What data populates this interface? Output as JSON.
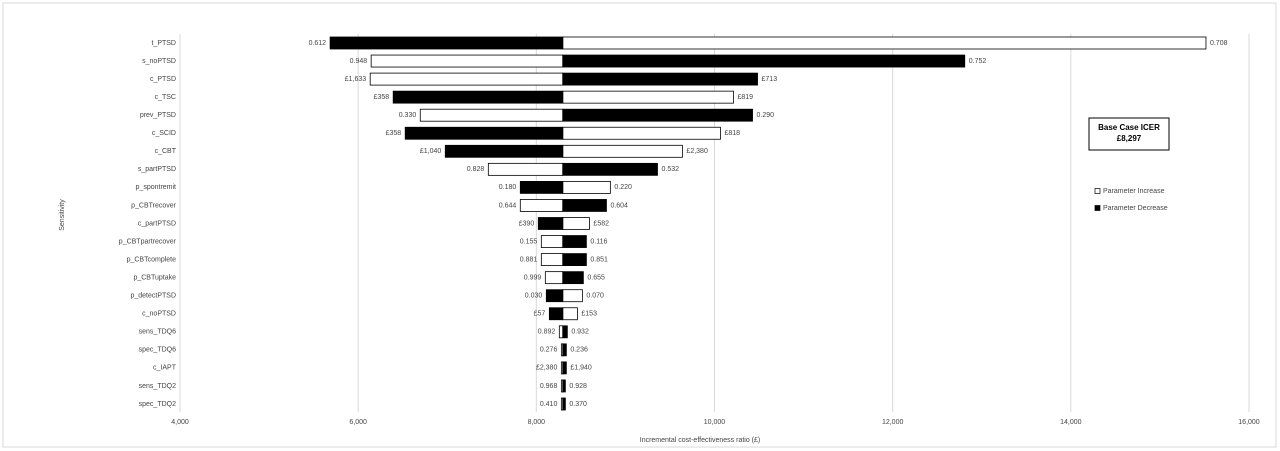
{
  "chart_data": {
    "type": "tornado",
    "x_label": "Incremental cost-effectiveness ratio (£)",
    "y_label": "Sensitivity",
    "categories": [
      "t_PTSD",
      "s_noPTSD",
      "c_PTSD",
      "c_TSC",
      "prev_PTSD",
      "c_SCID",
      "c_CBT",
      "s_partPTSD",
      "p_spontremit",
      "p_CBTrecover",
      "c_partPTSD",
      "p_CBTpartrecover",
      "p_CBTcomplete",
      "p_CBTuptake",
      "p_detectPTSD",
      "c_noPTSD",
      "sens_TDQ6",
      "spec_TDQ6",
      "c_IAPT",
      "sens_TDQ2",
      "spec_TDQ2"
    ],
    "series": [
      {
        "name": "Parameter Increase",
        "color": "#ffffff",
        "values": [
          15517,
          6146,
          6135,
          10213,
          6697,
          10067,
          9640,
          7461,
          8831,
          7820,
          8596,
          8056,
          8056,
          8101,
          8517,
          8461,
          8258,
          8281,
          8281,
          8281,
          8281
        ],
        "parameter_values": [
          "0.708",
          "0.948",
          "£1,633",
          "£819",
          "0.330",
          "£818",
          "£2,380",
          "0.828",
          "0.220",
          "0.644",
          "£582",
          "0.155",
          "0.881",
          "0.999",
          "0.070",
          "£153",
          "0.892",
          "0.276",
          "£2,380",
          "0.968",
          "0.410"
        ]
      },
      {
        "name": "Parameter Decrease",
        "color": "#000000",
        "values": [
          5685,
          12809,
          10483,
          6393,
          10427,
          6528,
          6978,
          9360,
          7820,
          8787,
          8022,
          8562,
          8562,
          8528,
          8112,
          8146,
          8348,
          8337,
          8337,
          8326,
          8326
        ],
        "parameter_values": [
          "0.612",
          "0.752",
          "£713",
          "£358",
          "0.290",
          "£358",
          "£1,040",
          "0.532",
          "0.180",
          "0.604",
          "£390",
          "0.116",
          "0.851",
          "0.655",
          "0.030",
          "£57",
          "0.932",
          "0.236",
          "£1,940",
          "0.928",
          "0.370"
        ]
      }
    ],
    "base_case": {
      "label": "Base Case ICER",
      "value": 8297,
      "value_label": "£8,297"
    },
    "xlim": [
      4000,
      16000
    ],
    "xticks": [
      {
        "value": 4000,
        "label": "4,000"
      },
      {
        "value": 6000,
        "label": "6,000"
      },
      {
        "value": 8000,
        "label": "8,000"
      },
      {
        "value": 10000,
        "label": "10,000"
      },
      {
        "value": 12000,
        "label": "12,000"
      },
      {
        "value": 14000,
        "label": "14,000"
      },
      {
        "value": 16000,
        "label": "16,000"
      }
    ],
    "grid": true
  }
}
